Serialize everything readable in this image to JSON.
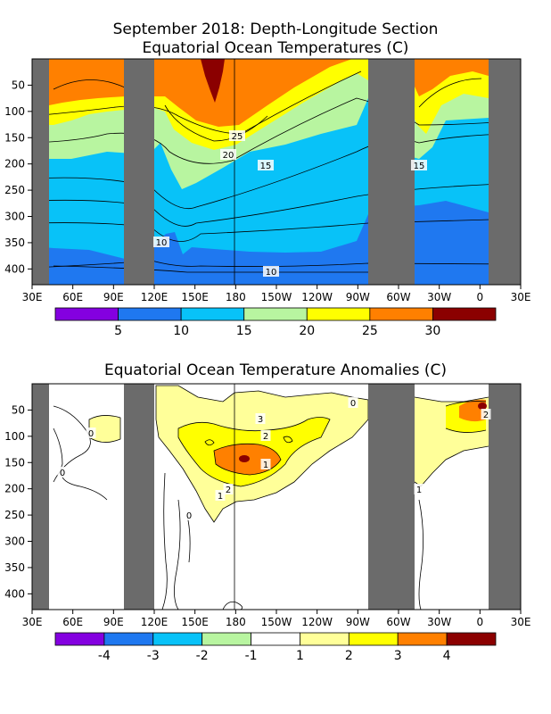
{
  "chart_data": [
    {
      "type": "heatmap",
      "title": "September 2018: Depth-Longitude Section",
      "subtitle": "Equatorial Ocean Temperatures (C)",
      "x_ticks": [
        "30E",
        "60E",
        "90E",
        "120E",
        "150E",
        "180",
        "150W",
        "120W",
        "90W",
        "60W",
        "30W",
        "0",
        "30E"
      ],
      "y_ticks": [
        "50",
        "100",
        "150",
        "200",
        "250",
        "300",
        "350",
        "400"
      ],
      "xlim": [
        30,
        390
      ],
      "ylim": [
        0,
        430
      ],
      "colorbar": {
        "levels": [
          5,
          10,
          15,
          20,
          25,
          30
        ],
        "tick_labels": [
          "5",
          "10",
          "15",
          "20",
          "25",
          "30"
        ],
        "colors": [
          "#8400e0",
          "#1f78f0",
          "#08c2f8",
          "#b8f5a0",
          "#ffff00",
          "#ff8000",
          "#8b0000"
        ]
      },
      "contour_labels": [
        "25",
        "20",
        "15",
        "15",
        "10",
        "10"
      ],
      "land_masks_lon": [
        [
          30,
          47
        ],
        [
          97,
          118
        ],
        [
          275,
          305
        ],
        [
          353,
          390
        ]
      ]
    },
    {
      "type": "heatmap",
      "title": "Equatorial Ocean Temperature Anomalies (C)",
      "x_ticks": [
        "30E",
        "60E",
        "90E",
        "120E",
        "150E",
        "180",
        "150W",
        "120W",
        "90W",
        "60W",
        "30W",
        "0",
        "30E"
      ],
      "y_ticks": [
        "50",
        "100",
        "150",
        "200",
        "250",
        "300",
        "350",
        "400"
      ],
      "xlim": [
        30,
        390
      ],
      "ylim": [
        0,
        430
      ],
      "colorbar": {
        "levels": [
          -4,
          -3,
          -2,
          -1,
          1,
          2,
          3,
          4
        ],
        "tick_labels": [
          "-4",
          "-3",
          "-2",
          "-1",
          "1",
          "2",
          "3",
          "4"
        ],
        "colors": [
          "#8400e0",
          "#1f78f0",
          "#08c2f8",
          "#b8f5a0",
          "#ffffff",
          "#ffff99",
          "#ffff00",
          "#ff8000",
          "#8b0000"
        ]
      },
      "contour_labels": [
        "1",
        "2",
        "3",
        "2",
        "1",
        "0",
        "0",
        "0",
        "0",
        "1",
        "2"
      ],
      "land_masks_lon": [
        [
          30,
          47
        ],
        [
          97,
          120
        ],
        [
          275,
          305
        ],
        [
          353,
          390
        ]
      ]
    }
  ]
}
